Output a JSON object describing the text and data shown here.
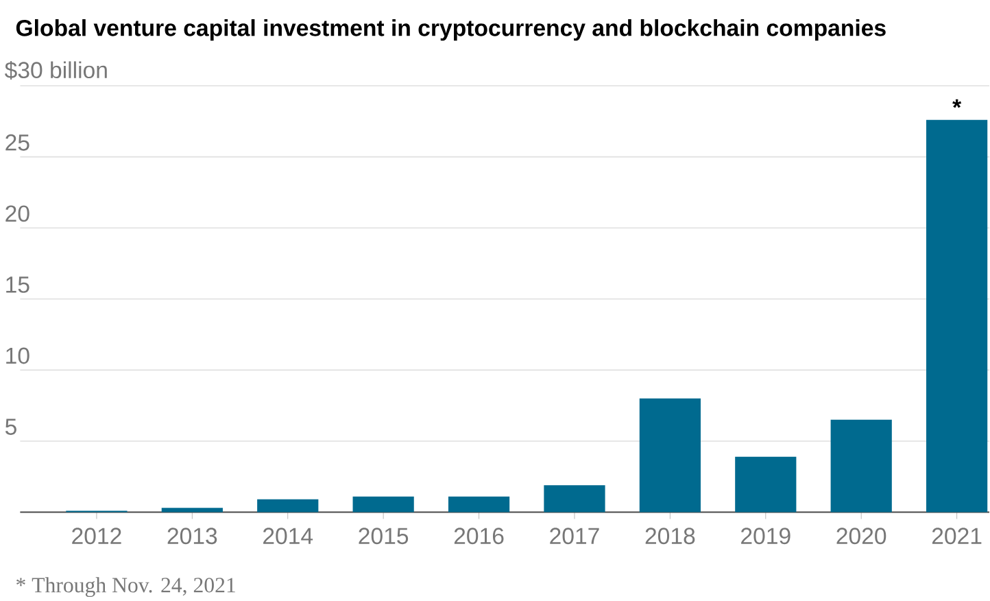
{
  "chart_data": {
    "type": "bar",
    "title": "Global venture capital investment in cryptocurrency and blockchain companies",
    "categories": [
      "2012",
      "2013",
      "2014",
      "2015",
      "2016",
      "2017",
      "2018",
      "2019",
      "2020",
      "2021"
    ],
    "values": [
      0.1,
      0.3,
      0.9,
      1.1,
      1.1,
      1.9,
      8.0,
      3.9,
      6.5,
      27.6
    ],
    "color": "#006a8f",
    "ylim": [
      0,
      30
    ],
    "yticks": [
      {
        "value": 0,
        "label": null
      },
      5,
      10,
      15,
      20,
      25,
      {
        "value": 30,
        "label": "$30 billion"
      }
    ],
    "grid": "y",
    "annotations": [
      {
        "text": "*",
        "x": "2021",
        "y": 27.6
      },
      "* Through Nov. 24, 2021"
    ]
  }
}
